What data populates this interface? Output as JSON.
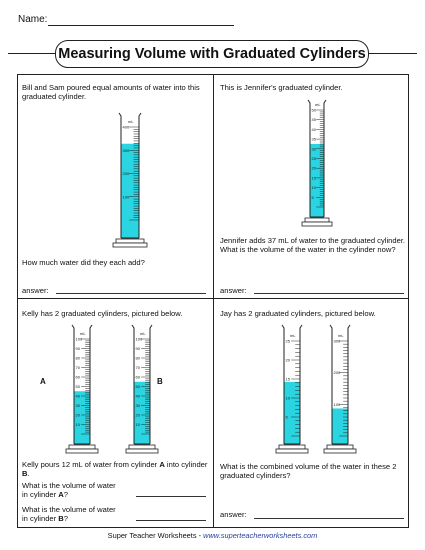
{
  "header": {
    "name_label": "Name:",
    "title": "Measuring Volume with Graduated Cylinders"
  },
  "colors": {
    "water": "#2ad4e0",
    "border": "#222222",
    "link": "#2a3f9a"
  },
  "problems": [
    {
      "text": "Bill and Sam poured equal amounts of water into this graduated cylinder.",
      "question": "How much water did they each add?",
      "answer_label": "answer:",
      "cylinders": [
        {
          "unit": "mL",
          "labels": [
            "400",
            "300",
            "200",
            "100"
          ],
          "fill_fraction": 0.82
        }
      ]
    },
    {
      "text": "This is Jennifer's graduated cylinder.",
      "question": "Jennifer adds 37 mL of water to the graduated cylinder.  What is the volume of the water in the cylinder now?",
      "answer_label": "answer:",
      "cylinders": [
        {
          "unit": "mL",
          "labels": [
            "50",
            "45",
            "40",
            "35",
            "30",
            "25",
            "20",
            "15",
            "10",
            "5"
          ],
          "fill_fraction": 0.65
        }
      ]
    },
    {
      "text": "Kelly has 2 graduated cylinders, pictured below.",
      "question_parts": [
        "Kelly pours 12 mL of water from cylinder ",
        "A",
        " into cylinder ",
        "B",
        "."
      ],
      "sub_questions": [
        {
          "lines": [
            "What is the volume of water",
            "in cylinder ",
            "A",
            "?"
          ]
        },
        {
          "lines": [
            "What is the volume of water",
            "in cylinder ",
            "B",
            "?"
          ]
        }
      ],
      "cylinders": [
        {
          "name": "A",
          "unit": "mL",
          "labels": [
            "100",
            "90",
            "80",
            "70",
            "60",
            "50",
            "40",
            "30",
            "20",
            "10"
          ],
          "fill_fraction": 0.45
        },
        {
          "name": "B",
          "unit": "mL",
          "labels": [
            "100",
            "90",
            "80",
            "70",
            "60",
            "50",
            "40",
            "30",
            "20",
            "10"
          ],
          "fill_fraction": 0.55
        }
      ]
    },
    {
      "text": "Jay has 2 graduated cylinders, pictured below.",
      "question": "What is the combined volume of the water in these 2 graduated cylinders?",
      "answer_label": "answer:",
      "cylinders": [
        {
          "unit": "mL",
          "labels": [
            "25",
            "20",
            "15",
            "10",
            "5"
          ],
          "fill_fraction": 0.57
        },
        {
          "unit": "mL",
          "labels": [
            "300",
            "200",
            "100"
          ],
          "fill_fraction": 0.29
        }
      ]
    }
  ],
  "footer": {
    "prefix": "Super Teacher Worksheets - ",
    "link": "www.superteacherworksheets.com"
  }
}
